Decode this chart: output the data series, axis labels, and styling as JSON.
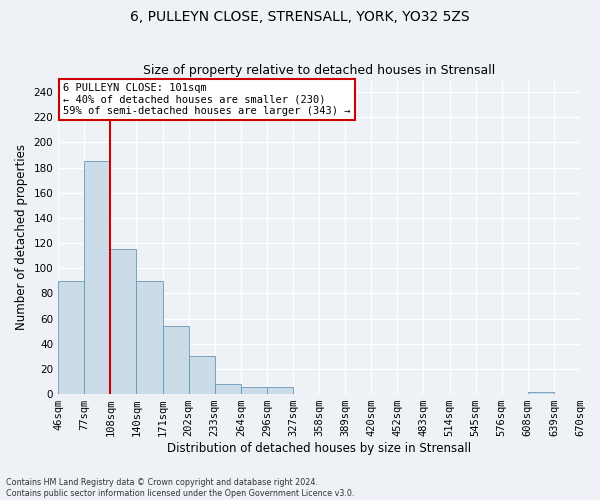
{
  "title": "6, PULLEYN CLOSE, STRENSALL, YORK, YO32 5ZS",
  "subtitle": "Size of property relative to detached houses in Strensall",
  "xlabel": "Distribution of detached houses by size in Strensall",
  "ylabel": "Number of detached properties",
  "bar_values": [
    90,
    185,
    115,
    90,
    54,
    30,
    8,
    6,
    6,
    0,
    0,
    0,
    0,
    0,
    0,
    0,
    0,
    0,
    2,
    0
  ],
  "x_labels": [
    "46sqm",
    "77sqm",
    "108sqm",
    "140sqm",
    "171sqm",
    "202sqm",
    "233sqm",
    "264sqm",
    "296sqm",
    "327sqm",
    "358sqm",
    "389sqm",
    "420sqm",
    "452sqm",
    "483sqm",
    "514sqm",
    "545sqm",
    "576sqm",
    "608sqm",
    "639sqm",
    "670sqm"
  ],
  "bar_color": "#ccdbe8",
  "bar_edge_color": "#6699bb",
  "vline_color": "#cc0000",
  "annotation_text": "6 PULLEYN CLOSE: 101sqm\n← 40% of detached houses are smaller (230)\n59% of semi-detached houses are larger (343) →",
  "annotation_box_color": "#ffffff",
  "annotation_border_color": "#cc0000",
  "ylim": [
    0,
    250
  ],
  "yticks": [
    0,
    20,
    40,
    60,
    80,
    100,
    120,
    140,
    160,
    180,
    200,
    220,
    240
  ],
  "background_color": "#eef2f7",
  "grid_color": "#ffffff",
  "footnote": "Contains HM Land Registry data © Crown copyright and database right 2024.\nContains public sector information licensed under the Open Government Licence v3.0.",
  "title_fontsize": 10,
  "subtitle_fontsize": 9,
  "xlabel_fontsize": 8.5,
  "ylabel_fontsize": 8.5,
  "tick_fontsize": 7.5,
  "annot_fontsize": 7.5
}
